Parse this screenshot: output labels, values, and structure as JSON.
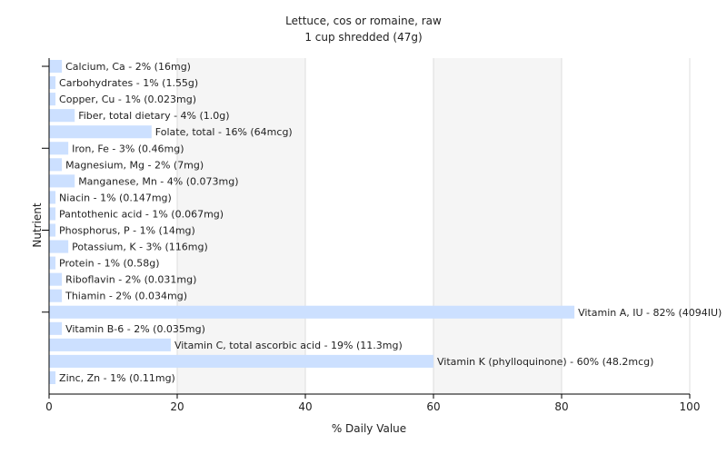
{
  "chart_data": {
    "type": "bar",
    "orientation": "horizontal",
    "title": "Lettuce, cos or romaine, raw",
    "subtitle": "1 cup shredded (47g)",
    "xlabel": "% Daily Value",
    "ylabel": "Nutrient",
    "xlim": [
      0,
      100
    ],
    "x_ticks": [
      0,
      20,
      40,
      60,
      80,
      100
    ],
    "grid": true,
    "bar_color": "#cce0ff",
    "categories": [
      "Calcium, Ca",
      "Carbohydrates",
      "Copper, Cu",
      "Fiber, total dietary",
      "Folate, total",
      "Iron, Fe",
      "Magnesium, Mg",
      "Manganese, Mn",
      "Niacin",
      "Pantothenic acid",
      "Phosphorus, P",
      "Potassium, K",
      "Protein",
      "Riboflavin",
      "Thiamin",
      "Vitamin A, IU",
      "Vitamin B-6",
      "Vitamin C, total ascorbic acid",
      "Vitamin K (phylloquinone)",
      "Zinc, Zn"
    ],
    "values": [
      2,
      1,
      1,
      4,
      16,
      3,
      2,
      4,
      1,
      1,
      1,
      3,
      1,
      2,
      2,
      82,
      2,
      19,
      60,
      1
    ],
    "labels": [
      "Calcium, Ca - 2% (16mg)",
      "Carbohydrates - 1% (1.55g)",
      "Copper, Cu - 1% (0.023mg)",
      "Fiber, total dietary - 4% (1.0g)",
      "Folate, total - 16% (64mcg)",
      "Iron, Fe - 3% (0.46mg)",
      "Magnesium, Mg - 2% (7mg)",
      "Manganese, Mn - 4% (0.073mg)",
      "Niacin - 1% (0.147mg)",
      "Pantothenic acid - 1% (0.067mg)",
      "Phosphorus, P - 1% (14mg)",
      "Potassium, K - 3% (116mg)",
      "Protein - 1% (0.58g)",
      "Riboflavin - 2% (0.031mg)",
      "Thiamin - 2% (0.034mg)",
      "Vitamin A, IU - 82% (4094IU)",
      "Vitamin B-6 - 2% (0.035mg)",
      "Vitamin C, total ascorbic acid - 19% (11.3mg)",
      "Vitamin K (phylloquinone) - 60% (48.2mcg)",
      "Zinc, Zn - 1% (0.11mg)"
    ]
  }
}
